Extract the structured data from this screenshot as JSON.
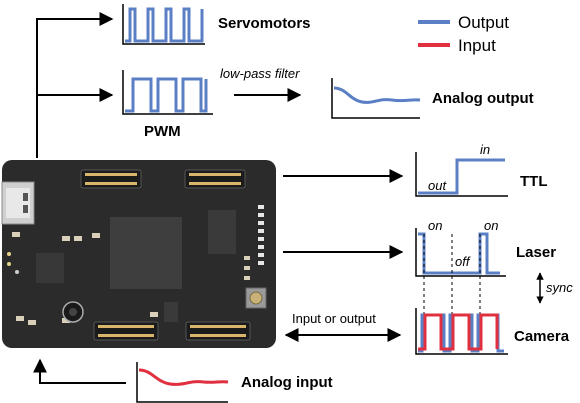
{
  "colors": {
    "output": "#5b7fc4",
    "input": "#e03040",
    "board": "#2b2b2b",
    "connector": "#d9b46b",
    "chip": "#3e3e3e"
  },
  "legend": {
    "output_label": "Output",
    "input_label": "Input"
  },
  "labels": {
    "servomotors": "Servomotors",
    "pwm": "PWM",
    "low_pass_filter": "low-pass filter",
    "analog_output": "Analog output",
    "ttl": "TTL",
    "ttl_out": "out",
    "ttl_in": "in",
    "laser": "Laser",
    "laser_on_1": "on",
    "laser_off": "off",
    "laser_on_2": "on",
    "sync": "sync",
    "camera": "Camera",
    "input_or_output": "Input or output",
    "analog_input": "Analog input"
  },
  "icons": {
    "board": "microcontroller-board",
    "usb": "usb-connector-icon",
    "buzzer": "buzzer-icon",
    "button": "push-button-icon"
  }
}
